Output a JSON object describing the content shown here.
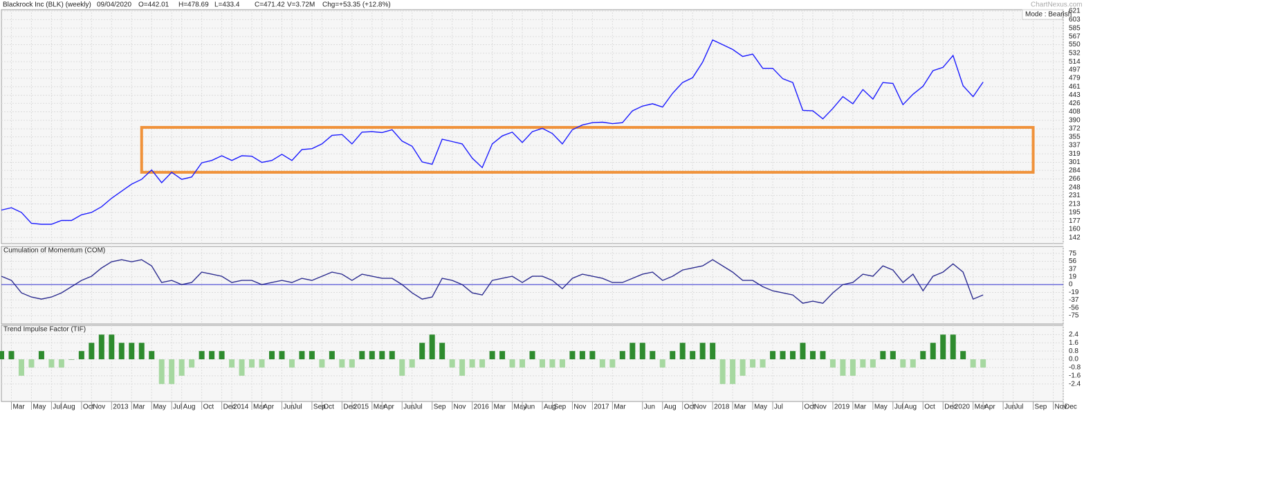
{
  "header": {
    "title": "Blackrock Inc (BLK) (weekly)",
    "date": "09/04/2020",
    "open": "O=442.01",
    "high": "H=478.69",
    "low": "L=433.4",
    "close": "C=471.42",
    "volume": "V=3.72M",
    "change": "Chg=+53.35 (+12.8%)",
    "watermark": "ChartNexus.com",
    "mode": "Mode : Bearish"
  },
  "chart_data": [
    {
      "type": "line",
      "name": "BLK",
      "color": "#1a1aff",
      "x": [
        "2012-02",
        "2012-03",
        "2012-04",
        "2012-05",
        "2012-06",
        "2012-07",
        "2012-08",
        "2012-09",
        "2012-10",
        "2012-11",
        "2012-12",
        "2013-01",
        "2013-02",
        "2013-03",
        "2013-04",
        "2013-05",
        "2013-06",
        "2013-07",
        "2013-08",
        "2013-09",
        "2013-10",
        "2013-11",
        "2013-12",
        "2014-01",
        "2014-02",
        "2014-03",
        "2014-04",
        "2014-05",
        "2014-06",
        "2014-07",
        "2014-08",
        "2014-09",
        "2014-10",
        "2014-11",
        "2014-12",
        "2015-01",
        "2015-02",
        "2015-03",
        "2015-04",
        "2015-05",
        "2015-06",
        "2015-07",
        "2015-08",
        "2015-09",
        "2015-10",
        "2015-11",
        "2015-12",
        "2016-01",
        "2016-02",
        "2016-03",
        "2016-04",
        "2016-05",
        "2016-06",
        "2016-07",
        "2016-08",
        "2016-09",
        "2016-10",
        "2016-11",
        "2016-12",
        "2017-01",
        "2017-02",
        "2017-03",
        "2017-04",
        "2017-05",
        "2017-06",
        "2017-07",
        "2017-08",
        "2017-09",
        "2017-10",
        "2017-11",
        "2017-12",
        "2018-01",
        "2018-02",
        "2018-03",
        "2018-04",
        "2018-05",
        "2018-06",
        "2018-07",
        "2018-08",
        "2018-09",
        "2018-10",
        "2018-11",
        "2018-12",
        "2019-01",
        "2019-02",
        "2019-03",
        "2019-04",
        "2019-05",
        "2019-06",
        "2019-07",
        "2019-08",
        "2019-09",
        "2019-10",
        "2019-11",
        "2019-12",
        "2020-01",
        "2020-02",
        "2020-03",
        "2020-04"
      ],
      "values": [
        200,
        205,
        195,
        172,
        170,
        170,
        178,
        178,
        190,
        195,
        207,
        225,
        240,
        255,
        265,
        285,
        258,
        280,
        265,
        270,
        300,
        305,
        315,
        305,
        315,
        314,
        301,
        305,
        318,
        305,
        328,
        330,
        340,
        358,
        360,
        340,
        365,
        366,
        364,
        370,
        346,
        335,
        302,
        297,
        350,
        345,
        340,
        310,
        290,
        340,
        357,
        365,
        343,
        366,
        373,
        362,
        340,
        370,
        380,
        385,
        386,
        383,
        385,
        410,
        420,
        425,
        418,
        447,
        470,
        480,
        513,
        560,
        550,
        540,
        525,
        530,
        500,
        500,
        478,
        470,
        411,
        410,
        393,
        415,
        440,
        425,
        455,
        435,
        470,
        468,
        423,
        445,
        462,
        495,
        502,
        527,
        463,
        440,
        471
      ],
      "xlim": [
        "2012-02",
        "2020-12"
      ],
      "ylim": [
        129,
        624
      ],
      "yticks": [
        621,
        603,
        585,
        567,
        550,
        532,
        514,
        497,
        479,
        461,
        443,
        426,
        408,
        390,
        372,
        355,
        337,
        319,
        301,
        284,
        266,
        248,
        231,
        213,
        195,
        177,
        160,
        142
      ],
      "grid": true,
      "highlight_box": {
        "xlim": [
          "2013-04",
          "2020-09"
        ],
        "ylim": [
          280,
          375
        ],
        "color": "#f0923a"
      }
    },
    {
      "type": "line",
      "title": "Cumulation of Momentum (COM)",
      "color": "#2b2b8f",
      "reference_line": 0,
      "reference_color": "#3030d0",
      "x": [
        "2012-02",
        "2012-03",
        "2012-04",
        "2012-05",
        "2012-06",
        "2012-07",
        "2012-08",
        "2012-09",
        "2012-10",
        "2012-11",
        "2012-12",
        "2013-01",
        "2013-02",
        "2013-03",
        "2013-04",
        "2013-05",
        "2013-06",
        "2013-07",
        "2013-08",
        "2013-09",
        "2013-10",
        "2013-11",
        "2013-12",
        "2014-01",
        "2014-02",
        "2014-03",
        "2014-04",
        "2014-05",
        "2014-06",
        "2014-07",
        "2014-08",
        "2014-09",
        "2014-10",
        "2014-11",
        "2014-12",
        "2015-01",
        "2015-02",
        "2015-03",
        "2015-04",
        "2015-05",
        "2015-06",
        "2015-07",
        "2015-08",
        "2015-09",
        "2015-10",
        "2015-11",
        "2015-12",
        "2016-01",
        "2016-02",
        "2016-03",
        "2016-04",
        "2016-05",
        "2016-06",
        "2016-07",
        "2016-08",
        "2016-09",
        "2016-10",
        "2016-11",
        "2016-12",
        "2017-01",
        "2017-02",
        "2017-03",
        "2017-04",
        "2017-05",
        "2017-06",
        "2017-07",
        "2017-08",
        "2017-09",
        "2017-10",
        "2017-11",
        "2017-12",
        "2018-01",
        "2018-02",
        "2018-03",
        "2018-04",
        "2018-05",
        "2018-06",
        "2018-07",
        "2018-08",
        "2018-09",
        "2018-10",
        "2018-11",
        "2018-12",
        "2019-01",
        "2019-02",
        "2019-03",
        "2019-04",
        "2019-05",
        "2019-06",
        "2019-07",
        "2019-08",
        "2019-09",
        "2019-10",
        "2019-11",
        "2019-12",
        "2020-01",
        "2020-02",
        "2020-03",
        "2020-04"
      ],
      "values": [
        20,
        10,
        -20,
        -30,
        -35,
        -30,
        -20,
        -5,
        10,
        20,
        40,
        55,
        60,
        55,
        60,
        45,
        5,
        10,
        0,
        5,
        30,
        25,
        20,
        5,
        10,
        10,
        0,
        5,
        10,
        5,
        15,
        10,
        20,
        30,
        25,
        10,
        25,
        20,
        15,
        15,
        0,
        -20,
        -35,
        -30,
        15,
        10,
        0,
        -20,
        -25,
        10,
        15,
        20,
        5,
        20,
        20,
        10,
        -10,
        15,
        25,
        20,
        15,
        5,
        5,
        15,
        25,
        30,
        10,
        20,
        35,
        40,
        45,
        60,
        45,
        30,
        10,
        10,
        -5,
        -15,
        -20,
        -25,
        -45,
        -40,
        -45,
        -20,
        0,
        5,
        25,
        20,
        45,
        35,
        5,
        25,
        -15,
        20,
        30,
        50,
        30,
        -35,
        -25
      ],
      "xlim": [
        "2012-02",
        "2020-12"
      ],
      "ylim": [
        -95,
        92
      ],
      "yticks": [
        75,
        56,
        37,
        19,
        0,
        -19,
        -37,
        -56,
        -75
      ],
      "grid": true
    },
    {
      "type": "bar",
      "title": "Trend Impulse Factor (TIF)",
      "color": "#2e8b2e",
      "negative_color": "#a6d8a0",
      "x": [
        "2012-02",
        "2012-03",
        "2012-04",
        "2012-05",
        "2012-06",
        "2012-07",
        "2012-08",
        "2012-09",
        "2012-10",
        "2012-11",
        "2012-12",
        "2013-01",
        "2013-02",
        "2013-03",
        "2013-04",
        "2013-05",
        "2013-06",
        "2013-07",
        "2013-08",
        "2013-09",
        "2013-10",
        "2013-11",
        "2013-12",
        "2014-01",
        "2014-02",
        "2014-03",
        "2014-04",
        "2014-05",
        "2014-06",
        "2014-07",
        "2014-08",
        "2014-09",
        "2014-10",
        "2014-11",
        "2014-12",
        "2015-01",
        "2015-02",
        "2015-03",
        "2015-04",
        "2015-05",
        "2015-06",
        "2015-07",
        "2015-08",
        "2015-09",
        "2015-10",
        "2015-11",
        "2015-12",
        "2016-01",
        "2016-02",
        "2016-03",
        "2016-04",
        "2016-05",
        "2016-06",
        "2016-07",
        "2016-08",
        "2016-09",
        "2016-10",
        "2016-11",
        "2016-12",
        "2017-01",
        "2017-02",
        "2017-03",
        "2017-04",
        "2017-05",
        "2017-06",
        "2017-07",
        "2017-08",
        "2017-09",
        "2017-10",
        "2017-11",
        "2017-12",
        "2018-01",
        "2018-02",
        "2018-03",
        "2018-04",
        "2018-05",
        "2018-06",
        "2018-07",
        "2018-08",
        "2018-09",
        "2018-10",
        "2018-11",
        "2018-12",
        "2019-01",
        "2019-02",
        "2019-03",
        "2019-04",
        "2019-05",
        "2019-06",
        "2019-07",
        "2019-08",
        "2019-09",
        "2019-10",
        "2019-11",
        "2019-12",
        "2020-01",
        "2020-02",
        "2020-03",
        "2020-04"
      ],
      "values": [
        0.8,
        0.8,
        -1.6,
        -0.8,
        0.8,
        -0.8,
        -0.8,
        0,
        0.8,
        1.6,
        2.4,
        2.4,
        1.6,
        1.6,
        1.6,
        0.8,
        -2.4,
        -2.4,
        -1.6,
        -0.8,
        0.8,
        0.8,
        0.8,
        -0.8,
        -1.6,
        -0.8,
        -0.8,
        0.8,
        0.8,
        -0.8,
        0.8,
        0.8,
        -0.8,
        0.8,
        -0.8,
        -0.8,
        0.8,
        0.8,
        0.8,
        0.8,
        -1.6,
        -0.8,
        1.6,
        2.4,
        1.6,
        -0.8,
        -1.6,
        -0.8,
        -0.8,
        0.8,
        0.8,
        -0.8,
        -0.8,
        0.8,
        -0.8,
        -0.8,
        -0.8,
        0.8,
        0.8,
        0.8,
        -0.8,
        -0.8,
        0.8,
        1.6,
        1.6,
        0.8,
        -0.8,
        0.8,
        1.6,
        0.8,
        1.6,
        1.6,
        -2.4,
        -2.4,
        -1.6,
        -0.8,
        -0.8,
        0.8,
        0.8,
        0.8,
        1.6,
        0.8,
        0.8,
        -0.8,
        -1.6,
        -1.6,
        -0.8,
        -0.8,
        0.8,
        0.8,
        -0.8,
        -0.8,
        0.8,
        1.6,
        2.4,
        2.4,
        0.8,
        -0.8,
        -0.8
      ],
      "xlim": [
        "2012-02",
        "2020-12"
      ],
      "ylim": [
        -4.1,
        3.3
      ],
      "yticks": [
        2.4,
        1.6,
        0.8,
        {
          "value": 0,
          "label": "0.0"
        },
        -0.8,
        -1.6,
        -2.4
      ],
      "grid": true,
      "xticks": [
        {
          "value": "2012-03",
          "label": "Mar"
        },
        {
          "value": "2012-05",
          "label": "May"
        },
        {
          "value": "2012-07",
          "label": "Jul"
        },
        {
          "value": "2012-08",
          "label": "Aug"
        },
        {
          "value": "2012-10",
          "label": "Oct"
        },
        {
          "value": "2012-11",
          "label": "Nov"
        },
        {
          "value": "2013-01",
          "label": "2013"
        },
        {
          "value": "2013-03",
          "label": "Mar"
        },
        {
          "value": "2013-05",
          "label": "May"
        },
        {
          "value": "2013-07",
          "label": "Jul"
        },
        {
          "value": "2013-08",
          "label": "Aug"
        },
        {
          "value": "2013-10",
          "label": "Oct"
        },
        {
          "value": "2013-12",
          "label": "Dec"
        },
        {
          "value": "2014-01",
          "label": "2014"
        },
        {
          "value": "2014-03",
          "label": "Mar"
        },
        {
          "value": "2014-04",
          "label": "Apr"
        },
        {
          "value": "2014-06",
          "label": "Jun"
        },
        {
          "value": "2014-07",
          "label": "Jul"
        },
        {
          "value": "2014-09",
          "label": "Sep"
        },
        {
          "value": "2014-10",
          "label": "Oct"
        },
        {
          "value": "2014-12",
          "label": "Dec"
        },
        {
          "value": "2015-01",
          "label": "2015"
        },
        {
          "value": "2015-03",
          "label": "Mar"
        },
        {
          "value": "2015-04",
          "label": "Apr"
        },
        {
          "value": "2015-06",
          "label": "Jun"
        },
        {
          "value": "2015-07",
          "label": "Jul"
        },
        {
          "value": "2015-09",
          "label": "Sep"
        },
        {
          "value": "2015-11",
          "label": "Nov"
        },
        {
          "value": "2016-01",
          "label": "2016"
        },
        {
          "value": "2016-03",
          "label": "Mar"
        },
        {
          "value": "2016-05",
          "label": "May"
        },
        {
          "value": "2016-06",
          "label": "Jun"
        },
        {
          "value": "2016-08",
          "label": "Aug"
        },
        {
          "value": "2016-09",
          "label": "Sep"
        },
        {
          "value": "2016-11",
          "label": "Nov"
        },
        {
          "value": "2017-01",
          "label": "2017"
        },
        {
          "value": "2017-03",
          "label": "Mar"
        },
        {
          "value": "2017-06",
          "label": "Jun"
        },
        {
          "value": "2017-08",
          "label": "Aug"
        },
        {
          "value": "2017-10",
          "label": "Oct"
        },
        {
          "value": "2017-11",
          "label": "Nov"
        },
        {
          "value": "2018-01",
          "label": "2018"
        },
        {
          "value": "2018-03",
          "label": "Mar"
        },
        {
          "value": "2018-05",
          "label": "May"
        },
        {
          "value": "2018-07",
          "label": "Jul"
        },
        {
          "value": "2018-10",
          "label": "Oct"
        },
        {
          "value": "2018-11",
          "label": "Nov"
        },
        {
          "value": "2019-01",
          "label": "2019"
        },
        {
          "value": "2019-03",
          "label": "Mar"
        },
        {
          "value": "2019-05",
          "label": "May"
        },
        {
          "value": "2019-07",
          "label": "Jul"
        },
        {
          "value": "2019-08",
          "label": "Aug"
        },
        {
          "value": "2019-10",
          "label": "Oct"
        },
        {
          "value": "2019-12",
          "label": "Dec"
        },
        {
          "value": "2020-01",
          "label": "2020"
        },
        {
          "value": "2020-03",
          "label": "Mar"
        },
        {
          "value": "2020-04",
          "label": "Apr"
        },
        {
          "value": "2020-06",
          "label": "Jun"
        },
        {
          "value": "2020-07",
          "label": "Jul"
        },
        {
          "value": "2020-09",
          "label": "Sep"
        },
        {
          "value": "2020-11",
          "label": "Nov"
        },
        {
          "value": "2020-12",
          "label": "Dec"
        }
      ]
    }
  ]
}
